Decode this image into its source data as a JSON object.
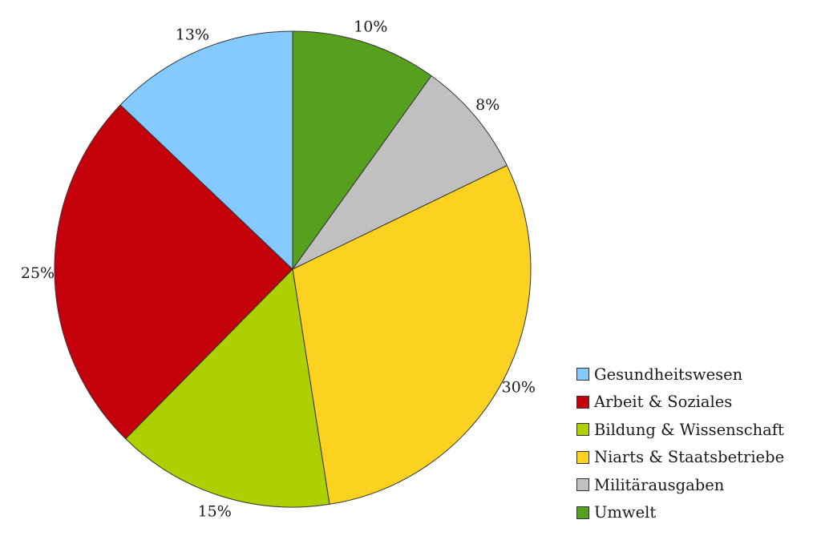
{
  "chart_data": {
    "type": "pie",
    "start_angle_deg": 0,
    "direction": "clockwise",
    "slices": [
      {
        "label": "Umwelt",
        "value": 10,
        "value_label": "10%",
        "color": "#56a01e"
      },
      {
        "label": "Militärausgaben",
        "value": 8,
        "value_label": "8%",
        "color": "#c0c0c0"
      },
      {
        "label": "Niarts & Staatsbetriebe",
        "value": 30,
        "value_label": "30%",
        "color": "#fcd221"
      },
      {
        "label": "Bildung & Wissenschaft",
        "value": 15,
        "value_label": "15%",
        "color": "#acd000"
      },
      {
        "label": "Arbeit & Soziales",
        "value": 25,
        "value_label": "25%",
        "color": "#c4000b"
      },
      {
        "label": "Gesundheitswesen",
        "value": 13,
        "value_label": "13%",
        "color": "#84c9ff"
      }
    ],
    "legend": {
      "placement": "bottom-right",
      "order": [
        "Gesundheitswesen",
        "Arbeit & Soziales",
        "Bildung & Wissenschaft",
        "Niarts & Staatsbetriebe",
        "Militärausgaben",
        "Umwelt"
      ]
    }
  }
}
